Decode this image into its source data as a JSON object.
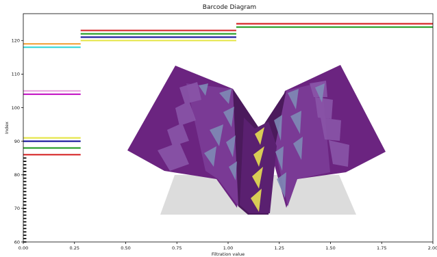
{
  "chart_data": {
    "type": "barcode",
    "title": "Barcode Diagram",
    "xlabel": "Filtration value",
    "ylabel": "Index",
    "xlim": [
      0,
      2.0
    ],
    "ylim": [
      60,
      128
    ],
    "x_ticks": [
      "0.00",
      "0.25",
      "0.50",
      "0.75",
      "1.00",
      "1.25",
      "1.50",
      "1.75",
      "2.00"
    ],
    "y_ticks": [
      "60",
      "70",
      "80",
      "90",
      "100",
      "110",
      "120"
    ],
    "short_bar_range": {
      "index_start": 60,
      "index_end": 85,
      "birth": 0.0,
      "death": 0.015,
      "color": "#000000"
    },
    "bars": [
      {
        "index": 86,
        "birth": 0.0,
        "death": 0.28,
        "color": "#d62728"
      },
      {
        "index": 88,
        "birth": 0.0,
        "death": 0.28,
        "color": "#2ca02c"
      },
      {
        "index": 90,
        "birth": 0.0,
        "death": 0.28,
        "color": "#1f1f9f"
      },
      {
        "index": 91,
        "birth": 0.0,
        "death": 0.28,
        "color": "#e6e64c"
      },
      {
        "index": 104,
        "birth": 0.0,
        "death": 0.28,
        "color": "#c71fc7"
      },
      {
        "index": 105,
        "birth": 0.0,
        "death": 0.28,
        "color": "#e9a6e0"
      },
      {
        "index": 118,
        "birth": 0.0,
        "death": 0.28,
        "color": "#40d9d9"
      },
      {
        "index": 119,
        "birth": 0.0,
        "death": 0.28,
        "color": "#f2a23a"
      },
      {
        "index": 120,
        "birth": 0.28,
        "death": 1.04,
        "color": "#e6e64c"
      },
      {
        "index": 121,
        "birth": 0.28,
        "death": 1.04,
        "color": "#1f1f9f"
      },
      {
        "index": 122,
        "birth": 0.28,
        "death": 1.04,
        "color": "#2ca02c"
      },
      {
        "index": 123,
        "birth": 0.28,
        "death": 1.04,
        "color": "#d62728"
      },
      {
        "index": 124,
        "birth": 1.04,
        "death": 2.0,
        "color": "#2ca02c"
      },
      {
        "index": 125,
        "birth": 1.04,
        "death": 2.0,
        "color": "#d62728"
      }
    ],
    "overlay": {
      "colors": {
        "dark_purple": "#4b1a5c",
        "mid_purple": "#6b2480",
        "light_purple": "#8a55a8",
        "steel": "#7f8fb8",
        "yellow": "#d8cc55",
        "shadow": "#dcdcdc"
      }
    }
  }
}
